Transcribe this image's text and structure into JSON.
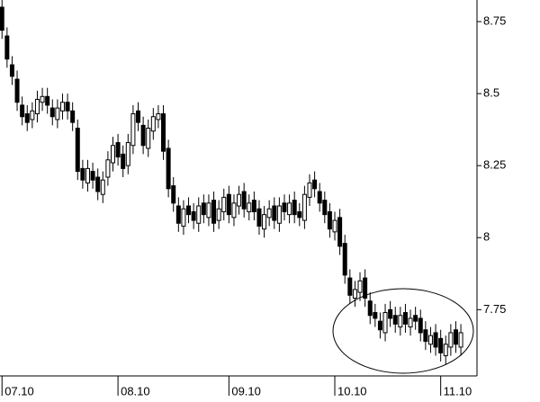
{
  "chart_data": {
    "type": "candlestick",
    "x": [
      0,
      1,
      2,
      3,
      4,
      5,
      6,
      7,
      8,
      9,
      10,
      11,
      12,
      13,
      14,
      15,
      16,
      17,
      18,
      19,
      20,
      21,
      22,
      23,
      24,
      25,
      26,
      27,
      28,
      29,
      30,
      31,
      32,
      33,
      34,
      35,
      36,
      37,
      38,
      39,
      40,
      41,
      42,
      43,
      44,
      45,
      46,
      47,
      48,
      49,
      50,
      51,
      52,
      53,
      54,
      55,
      56,
      57,
      58,
      59,
      60,
      61,
      62,
      63,
      64,
      65,
      66,
      67,
      68,
      69,
      70,
      71,
      72,
      73,
      74,
      75,
      76,
      77,
      78,
      79,
      80,
      81,
      82,
      83,
      84,
      85,
      86,
      87,
      88,
      89,
      90,
      91
    ],
    "open": [
      8.8,
      8.7,
      8.6,
      8.55,
      8.46,
      8.43,
      8.41,
      8.43,
      8.47,
      8.49,
      8.45,
      8.41,
      8.44,
      8.47,
      8.44,
      8.38,
      8.24,
      8.19,
      8.23,
      8.21,
      8.15,
      8.21,
      8.26,
      8.33,
      8.29,
      8.25,
      8.32,
      8.44,
      8.39,
      8.31,
      8.37,
      8.41,
      8.43,
      8.31,
      8.18,
      8.11,
      8.04,
      8.11,
      8.09,
      8.05,
      8.12,
      8.07,
      8.13,
      8.06,
      8.09,
      8.15,
      8.07,
      8.11,
      8.16,
      8.09,
      8.13,
      8.1,
      8.03,
      8.07,
      8.11,
      8.05,
      8.12,
      8.08,
      8.13,
      8.09,
      8.06,
      8.14,
      8.2,
      8.16,
      8.13,
      8.09,
      8.02,
      8.07,
      7.98,
      7.86,
      7.79,
      7.81,
      7.86,
      7.78,
      7.74,
      7.71,
      7.67,
      7.75,
      7.73,
      7.69,
      7.74,
      7.69,
      7.73,
      7.72,
      7.68,
      7.63,
      7.67,
      7.65,
      7.59,
      7.62,
      7.68,
      7.62
    ],
    "high": [
      8.83,
      8.73,
      8.63,
      8.58,
      8.49,
      8.46,
      8.47,
      8.51,
      8.52,
      8.52,
      8.48,
      8.48,
      8.5,
      8.5,
      8.47,
      8.41,
      8.27,
      8.27,
      8.26,
      8.24,
      8.23,
      8.3,
      8.35,
      8.36,
      8.32,
      8.36,
      8.46,
      8.47,
      8.42,
      8.41,
      8.45,
      8.46,
      8.46,
      8.34,
      8.21,
      8.14,
      8.13,
      8.14,
      8.12,
      8.14,
      8.15,
      8.15,
      8.16,
      8.13,
      8.17,
      8.18,
      8.15,
      8.18,
      8.19,
      8.15,
      8.16,
      8.13,
      8.11,
      8.13,
      8.14,
      8.14,
      8.15,
      8.15,
      8.16,
      8.12,
      8.18,
      8.22,
      8.23,
      8.19,
      8.16,
      8.12,
      8.09,
      8.1,
      8.01,
      7.89,
      7.85,
      7.88,
      7.89,
      7.81,
      7.77,
      7.74,
      7.77,
      7.78,
      7.76,
      7.76,
      7.77,
      7.75,
      7.76,
      7.75,
      7.71,
      7.69,
      7.7,
      7.68,
      7.66,
      7.7,
      7.71,
      7.7
    ],
    "low": [
      8.69,
      8.59,
      8.53,
      8.44,
      8.39,
      8.37,
      8.38,
      8.4,
      8.44,
      8.43,
      8.39,
      8.38,
      8.41,
      8.41,
      8.37,
      8.2,
      8.17,
      8.16,
      8.17,
      8.13,
      8.12,
      8.18,
      8.23,
      8.25,
      8.21,
      8.22,
      8.29,
      8.37,
      8.29,
      8.28,
      8.34,
      8.38,
      8.27,
      8.14,
      8.09,
      8.02,
      8.01,
      8.05,
      8.03,
      8.02,
      8.05,
      8.04,
      8.02,
      8.03,
      8.06,
      8.05,
      8.04,
      8.08,
      8.07,
      8.06,
      8.06,
      8.01,
      8.0,
      8.04,
      8.03,
      8.02,
      8.06,
      8.05,
      8.05,
      8.04,
      8.03,
      8.11,
      8.14,
      8.09,
      8.05,
      8.0,
      7.99,
      7.94,
      7.84,
      7.77,
      7.76,
      7.78,
      7.76,
      7.7,
      7.69,
      7.65,
      7.64,
      7.69,
      7.67,
      7.66,
      7.67,
      7.66,
      7.68,
      7.64,
      7.61,
      7.6,
      7.59,
      7.57,
      7.56,
      7.59,
      7.6,
      7.59
    ],
    "close": [
      8.72,
      8.62,
      8.56,
      8.47,
      8.42,
      8.4,
      8.44,
      8.48,
      8.49,
      8.46,
      8.42,
      8.45,
      8.47,
      8.44,
      8.4,
      8.23,
      8.2,
      8.24,
      8.2,
      8.16,
      8.2,
      8.27,
      8.32,
      8.28,
      8.24,
      8.33,
      8.43,
      8.4,
      8.32,
      8.38,
      8.42,
      8.43,
      8.3,
      8.17,
      8.12,
      8.05,
      8.1,
      8.08,
      8.06,
      8.11,
      8.08,
      8.12,
      8.05,
      8.1,
      8.14,
      8.08,
      8.12,
      8.15,
      8.1,
      8.12,
      8.09,
      8.04,
      8.08,
      8.1,
      8.06,
      8.11,
      8.09,
      8.12,
      8.08,
      8.07,
      8.15,
      8.19,
      8.17,
      8.12,
      8.08,
      8.03,
      8.06,
      7.97,
      7.87,
      7.8,
      7.82,
      7.85,
      7.79,
      7.73,
      7.72,
      7.68,
      7.74,
      7.72,
      7.7,
      7.73,
      7.7,
      7.72,
      7.71,
      7.67,
      7.64,
      7.66,
      7.62,
      7.6,
      7.63,
      7.67,
      7.63,
      7.67
    ],
    "up_color": "#ffffff",
    "down_color": "#000000",
    "xlim": [
      -0.4,
      94.2
    ],
    "xticks": [
      {
        "value": 0,
        "label": "07.10"
      },
      {
        "value": 23,
        "label": "08.10"
      },
      {
        "value": 45,
        "label": "09.10"
      },
      {
        "value": 66,
        "label": "10.10"
      },
      {
        "value": 87,
        "label": "11.10"
      }
    ],
    "ylim": [
      7.52,
      8.825
    ],
    "yticks": [
      {
        "value": 7.75,
        "label": "7.75"
      },
      8,
      {
        "value": 8.25,
        "label": "8.25"
      },
      {
        "value": 8.5,
        "label": "8.5"
      },
      {
        "value": 8.75,
        "label": "8.75"
      }
    ]
  }
}
